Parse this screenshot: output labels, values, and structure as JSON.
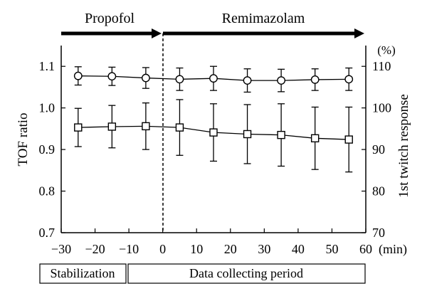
{
  "chart_data": {
    "type": "line",
    "x": [
      -25,
      -15,
      -5,
      5,
      15,
      25,
      35,
      45,
      55
    ],
    "xlim": [
      -30,
      60
    ],
    "x_ticks": [
      -30,
      -20,
      -10,
      0,
      10,
      20,
      30,
      40,
      50,
      60
    ],
    "x_tick_labels": [
      "−30",
      "−20",
      "−10",
      "0",
      "10",
      "20",
      "30",
      "40",
      "50",
      "60"
    ],
    "x_unit": "(min)",
    "y_left": {
      "label": "TOF ratio",
      "lim": [
        0.7,
        1.15
      ],
      "ticks": [
        0.7,
        0.8,
        0.9,
        1.0,
        1.1
      ],
      "tick_labels": [
        "0.7",
        "0.8",
        "0.9",
        "1.0",
        "1.1"
      ]
    },
    "y_right": {
      "label": "1st twitch response",
      "unit": "(%)",
      "lim": [
        70,
        115
      ],
      "ticks": [
        70,
        80,
        90,
        100,
        110
      ],
      "tick_labels": [
        "70",
        "80",
        "90",
        "100",
        "110"
      ]
    },
    "series": [
      {
        "marker": "circle",
        "axis": "left",
        "values": [
          1.077,
          1.076,
          1.072,
          1.069,
          1.071,
          1.066,
          1.066,
          1.068,
          1.069
        ],
        "error": [
          0.022,
          0.022,
          0.025,
          0.027,
          0.029,
          0.028,
          0.027,
          0.026,
          0.027
        ]
      },
      {
        "marker": "square",
        "axis": "right",
        "values": [
          95.3,
          95.5,
          95.6,
          95.3,
          94.1,
          93.7,
          93.5,
          92.7,
          92.4
        ],
        "error": [
          4.6,
          5.1,
          5.6,
          6.7,
          6.9,
          7.1,
          7.5,
          7.5,
          7.8
        ]
      }
    ],
    "divider_x": 0,
    "phases": {
      "drug_1": "Propofol",
      "drug_2": "Remimazolam",
      "period_1": "Stabilization",
      "period_2": "Data collecting period"
    }
  }
}
